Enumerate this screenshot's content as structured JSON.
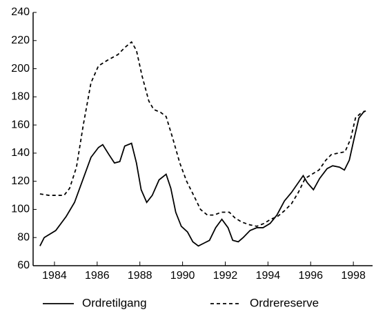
{
  "chart_data": {
    "type": "line",
    "xlim": [
      1983,
      1998.9
    ],
    "xticks": [
      1984,
      1986,
      1988,
      1990,
      1992,
      1994,
      1996,
      1998
    ],
    "ylim": [
      60,
      240
    ],
    "yticks": [
      60,
      80,
      100,
      120,
      140,
      160,
      180,
      200,
      220,
      240
    ],
    "legend": "bottom",
    "series": [
      {
        "name": "Ordretilgang",
        "color": "#000000",
        "dash": "solid",
        "x": [
          1983.32,
          1983.52,
          1984.06,
          1984.55,
          1984.94,
          1985.35,
          1985.71,
          1986.06,
          1986.26,
          1986.55,
          1986.81,
          1987.06,
          1987.29,
          1987.61,
          1987.84,
          1988.06,
          1988.32,
          1988.58,
          1988.9,
          1989.23,
          1989.45,
          1989.68,
          1989.94,
          1990.23,
          1990.48,
          1990.74,
          1991.0,
          1991.26,
          1991.55,
          1991.84,
          1992.13,
          1992.35,
          1992.61,
          1992.84,
          1993.16,
          1993.48,
          1993.77,
          1994.1,
          1994.42,
          1994.77,
          1995.1,
          1995.42,
          1995.65,
          1995.84,
          1996.13,
          1996.42,
          1996.77,
          1997.03,
          1997.35,
          1997.58,
          1997.81,
          1998.03,
          1998.26,
          1998.52
        ],
        "values": [
          74,
          80,
          85,
          95,
          105,
          122,
          137,
          144,
          146,
          139,
          133,
          134,
          145,
          147,
          133,
          114,
          105,
          110,
          121,
          125,
          115,
          98,
          88,
          84,
          77,
          74,
          76,
          78,
          87,
          93,
          87,
          78,
          77,
          80,
          85,
          87,
          87,
          90,
          96,
          106,
          112,
          119,
          124,
          119,
          114,
          122,
          129,
          131,
          130,
          128,
          135,
          150,
          165,
          170
        ]
      },
      {
        "name": "Ordrereserve",
        "color": "#000000",
        "dash": "dashed",
        "x": [
          1983.32,
          1983.74,
          1984.45,
          1984.71,
          1985.03,
          1985.35,
          1985.71,
          1986.06,
          1986.48,
          1986.97,
          1987.29,
          1987.61,
          1987.84,
          1988.1,
          1988.42,
          1988.65,
          1988.97,
          1989.23,
          1989.55,
          1989.87,
          1990.19,
          1990.52,
          1990.84,
          1991.16,
          1991.48,
          1991.81,
          1992.19,
          1992.45,
          1992.77,
          1993.16,
          1993.48,
          1993.81,
          1994.13,
          1994.45,
          1994.77,
          1995.1,
          1995.42,
          1995.74,
          1996.06,
          1996.39,
          1996.71,
          1996.97,
          1997.29,
          1997.61,
          1997.87,
          1998.1,
          1998.32,
          1998.58
        ],
        "values": [
          111,
          110,
          110,
          115,
          130,
          160,
          190,
          202,
          206,
          210,
          215,
          219,
          213,
          195,
          177,
          171,
          169,
          166,
          150,
          133,
          120,
          110,
          100,
          96,
          96,
          98,
          98,
          94,
          91,
          89,
          88,
          90,
          93,
          95,
          99,
          104,
          112,
          122,
          125,
          128,
          135,
          139,
          140,
          141,
          150,
          165,
          168,
          170
        ]
      }
    ]
  }
}
